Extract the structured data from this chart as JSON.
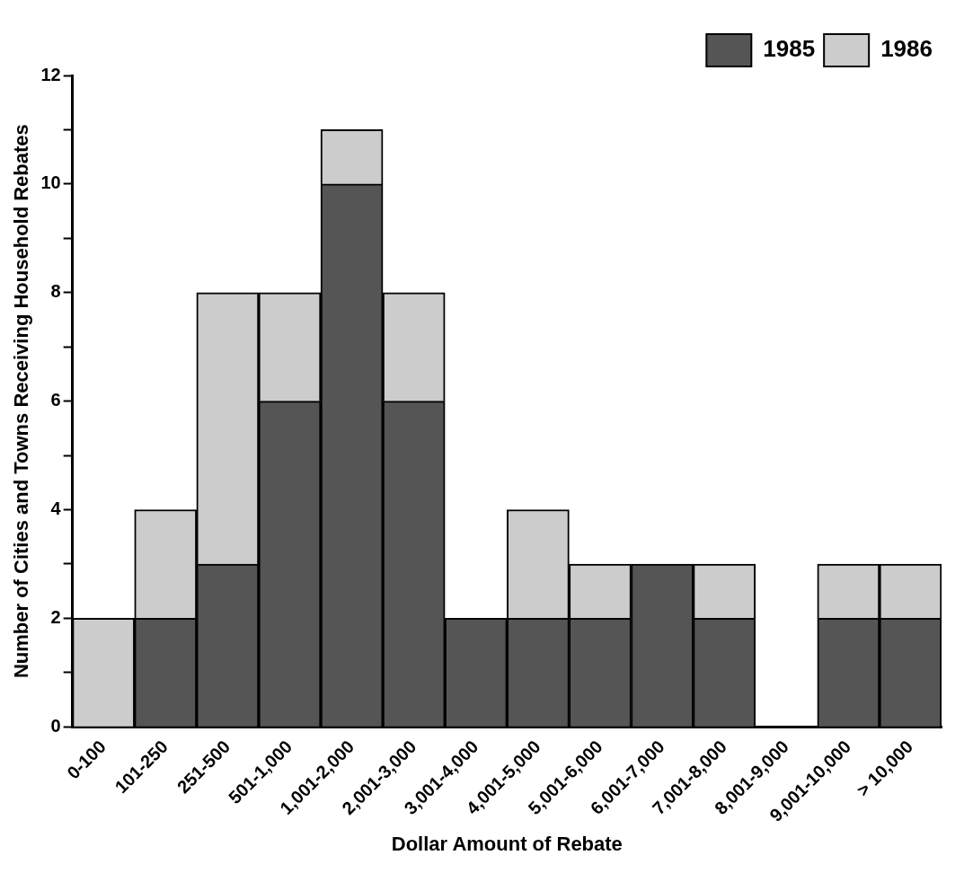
{
  "chart_data": {
    "type": "bar",
    "xlabel": "Dollar Amount of Rebate",
    "ylabel": "Number of Cities and Towns Receiving Household Rebates",
    "categories": [
      "0-100",
      "101-250",
      "251-500",
      "501-1,000",
      "1,001-2,000",
      "2,001-3,000",
      "3,001-4,000",
      "4,001-5,000",
      "5,001-6,000",
      "6,001-7,000",
      "7,001-8,000",
      "8,001-9,000",
      "9,001-10,000",
      "> 10,000"
    ],
    "series": [
      {
        "name": "1985",
        "color": "#555555",
        "values": [
          0,
          2,
          3,
          6,
          10,
          6,
          2,
          2,
          2,
          3,
          2,
          0,
          2,
          2
        ]
      },
      {
        "name": "1986",
        "color": "#cccccc",
        "values": [
          2,
          2,
          5,
          2,
          1,
          2,
          0,
          2,
          1,
          0,
          1,
          0,
          1,
          1
        ]
      }
    ],
    "stacked": true,
    "ylim": [
      0,
      12
    ],
    "yticks": [
      0,
      {
        "value": 1,
        "label": null
      },
      2,
      {
        "value": 3,
        "label": null
      },
      4,
      {
        "value": 5,
        "label": null
      },
      6,
      {
        "value": 7,
        "label": null
      },
      8,
      {
        "value": 9,
        "label": null
      },
      10,
      {
        "value": 11,
        "label": null
      },
      12
    ],
    "grid": false,
    "legend": "top right"
  }
}
